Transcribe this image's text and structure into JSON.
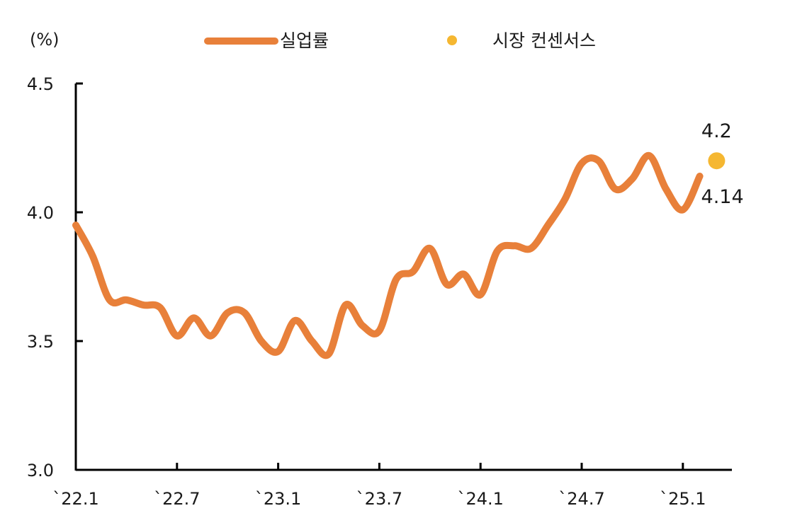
{
  "chart_data": {
    "type": "line",
    "title": "",
    "ylabel": "(%)",
    "xlabel": "",
    "ylim": [
      3.0,
      4.5
    ],
    "yticks": [
      "3.0",
      "3.5",
      "4.0",
      "4.5"
    ],
    "yticks_values": [
      3.0,
      3.5,
      4.0,
      4.5
    ],
    "categories": [
      "`22.1",
      "`22.7",
      "`23.1",
      "`23.7",
      "`24.1",
      "`24.7",
      "`25.1"
    ],
    "category_index": [
      0,
      6,
      12,
      18,
      24,
      30,
      36
    ],
    "series": [
      {
        "name": "실업률",
        "color": "#E8803A",
        "x": [
          0,
          1,
          2,
          3,
          4,
          5,
          6,
          7,
          8,
          9,
          10,
          11,
          12,
          13,
          14,
          15,
          16,
          17,
          18,
          19,
          20,
          21,
          22,
          23,
          24,
          25,
          26,
          27,
          28,
          29,
          30,
          31,
          32,
          33,
          34,
          35,
          36,
          37
        ],
        "values": [
          3.95,
          3.83,
          3.66,
          3.66,
          3.64,
          3.63,
          3.52,
          3.59,
          3.52,
          3.61,
          3.61,
          3.5,
          3.46,
          3.58,
          3.5,
          3.45,
          3.64,
          3.56,
          3.54,
          3.74,
          3.77,
          3.86,
          3.72,
          3.76,
          3.68,
          3.85,
          3.87,
          3.86,
          3.95,
          4.05,
          4.19,
          4.2,
          4.09,
          4.13,
          4.22,
          4.09,
          4.01,
          4.14
        ]
      },
      {
        "name": "시장 컨센서스",
        "color": "#F5B731",
        "x": [
          38
        ],
        "values": [
          4.2
        ]
      }
    ],
    "annotations": [
      {
        "text": "4.2",
        "series": "시장 컨센서스"
      },
      {
        "text": "4.14",
        "series": "실업률"
      }
    ],
    "legend": {
      "position": "top"
    }
  }
}
